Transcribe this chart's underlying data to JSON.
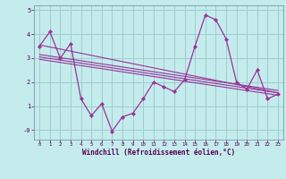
{
  "title": "",
  "xlabel": "Windchill (Refroidissement éolien,°C)",
  "background_color": "#c5eced",
  "line_color": "#993399",
  "grid_color": "#a0cccc",
  "x_data": [
    0,
    1,
    2,
    3,
    4,
    5,
    6,
    7,
    8,
    9,
    10,
    11,
    12,
    13,
    14,
    15,
    16,
    17,
    18,
    19,
    20,
    21,
    22,
    23
  ],
  "y_data": [
    3.5,
    4.1,
    3.0,
    3.6,
    1.3,
    0.6,
    1.1,
    -0.05,
    0.55,
    0.7,
    1.3,
    2.0,
    1.8,
    1.6,
    2.1,
    3.5,
    4.8,
    4.6,
    3.8,
    2.0,
    1.7,
    2.5,
    1.3,
    1.5
  ],
  "ylim": [
    -0.4,
    5.2
  ],
  "xlim": [
    -0.5,
    23.5
  ],
  "yticks": [
    0,
    1,
    2,
    3,
    4,
    5
  ],
  "ytick_labels": [
    "-0",
    "1",
    "2",
    "3",
    "4",
    "5"
  ],
  "xticks": [
    0,
    1,
    2,
    3,
    4,
    5,
    6,
    7,
    8,
    9,
    10,
    11,
    12,
    13,
    14,
    15,
    16,
    17,
    18,
    19,
    20,
    21,
    22,
    23
  ],
  "trend_lines": [
    {
      "x0": 0,
      "y0": 3.55,
      "x1": 23,
      "y1": 1.55
    },
    {
      "x0": 0,
      "y0": 3.15,
      "x1": 23,
      "y1": 1.65
    },
    {
      "x0": 0,
      "y0": 3.05,
      "x1": 23,
      "y1": 1.55
    },
    {
      "x0": 0,
      "y0": 2.95,
      "x1": 23,
      "y1": 1.45
    }
  ]
}
